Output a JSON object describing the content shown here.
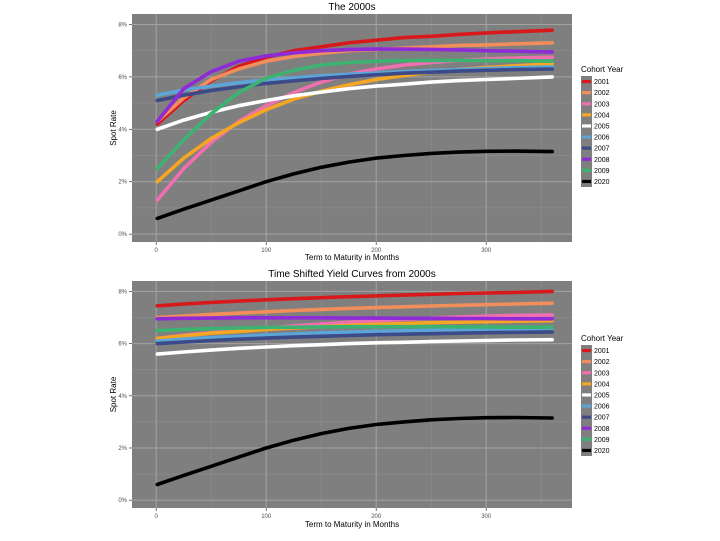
{
  "chart_data": [
    {
      "type": "line",
      "title": "The 2000s",
      "xlabel": "Term to Maturity in Months",
      "ylabel": "Spot Rate",
      "xlim": [
        -22,
        378
      ],
      "ylim": [
        -0.3,
        8.4
      ],
      "xticks": [
        0,
        100,
        200,
        300
      ],
      "xtick_labels": [
        "0",
        "100",
        "200",
        "300"
      ],
      "yticks": [
        0,
        2,
        4,
        6,
        8
      ],
      "ytick_labels": [
        "0%",
        "2%",
        "4%",
        "6%",
        "8%"
      ],
      "grid": true,
      "legend_title": "Cohort Year",
      "legend_position": "right",
      "x": [
        1,
        25,
        50,
        75,
        100,
        125,
        150,
        175,
        200,
        225,
        250,
        275,
        300,
        325,
        360
      ],
      "series": [
        {
          "name": "2001",
          "color": "#d7191c",
          "values": [
            4.2,
            5.1,
            5.85,
            6.4,
            6.75,
            7.0,
            7.15,
            7.3,
            7.4,
            7.5,
            7.55,
            7.62,
            7.68,
            7.72,
            7.78
          ]
        },
        {
          "name": "2002",
          "color": "#f28e5c",
          "values": [
            4.3,
            5.2,
            5.9,
            6.3,
            6.6,
            6.78,
            6.9,
            7.0,
            7.05,
            7.1,
            7.15,
            7.2,
            7.22,
            7.26,
            7.3
          ]
        },
        {
          "name": "2003",
          "color": "#f06fb0",
          "values": [
            1.3,
            2.5,
            3.5,
            4.3,
            4.9,
            5.4,
            5.8,
            6.1,
            6.3,
            6.45,
            6.55,
            6.62,
            6.68,
            6.72,
            6.75
          ]
        },
        {
          "name": "2004",
          "color": "#f5a623",
          "values": [
            2.0,
            2.9,
            3.65,
            4.25,
            4.75,
            5.15,
            5.45,
            5.7,
            5.9,
            6.05,
            6.18,
            6.28,
            6.36,
            6.42,
            6.5
          ]
        },
        {
          "name": "2005",
          "color": "#ffffff",
          "values": [
            4.0,
            4.35,
            4.65,
            4.9,
            5.1,
            5.28,
            5.42,
            5.55,
            5.65,
            5.72,
            5.8,
            5.86,
            5.9,
            5.94,
            6.0
          ]
        },
        {
          "name": "2006",
          "color": "#5da4d8",
          "values": [
            5.3,
            5.5,
            5.65,
            5.78,
            5.88,
            5.96,
            6.04,
            6.1,
            6.15,
            6.2,
            6.24,
            6.28,
            6.32,
            6.35,
            6.38
          ]
        },
        {
          "name": "2007",
          "color": "#3c4a87",
          "values": [
            5.1,
            5.3,
            5.48,
            5.62,
            5.75,
            5.85,
            5.94,
            6.02,
            6.08,
            6.14,
            6.18,
            6.22,
            6.25,
            6.28,
            6.3
          ]
        },
        {
          "name": "2008",
          "color": "#8e2bd6",
          "values": [
            4.3,
            5.55,
            6.2,
            6.6,
            6.8,
            6.92,
            7.0,
            7.04,
            7.06,
            7.06,
            7.05,
            7.03,
            7.0,
            6.98,
            6.95
          ]
        },
        {
          "name": "2009",
          "color": "#3cb371",
          "values": [
            2.5,
            3.6,
            4.6,
            5.4,
            5.95,
            6.25,
            6.45,
            6.55,
            6.6,
            6.62,
            6.63,
            6.63,
            6.62,
            6.62,
            6.6
          ]
        },
        {
          "name": "2020",
          "color": "#000000",
          "values": [
            0.6,
            0.95,
            1.3,
            1.65,
            2.0,
            2.3,
            2.55,
            2.75,
            2.9,
            3.0,
            3.08,
            3.13,
            3.16,
            3.17,
            3.15
          ]
        }
      ]
    },
    {
      "type": "line",
      "title": "Time Shifted Yield Curves from 2000s",
      "xlabel": "Term to Maturity in Months",
      "ylabel": "Spot Rate",
      "xlim": [
        -22,
        378
      ],
      "ylim": [
        -0.3,
        8.4
      ],
      "xticks": [
        0,
        100,
        200,
        300
      ],
      "xtick_labels": [
        "0",
        "100",
        "200",
        "300"
      ],
      "yticks": [
        0,
        2,
        4,
        6,
        8
      ],
      "ytick_labels": [
        "0%",
        "2%",
        "4%",
        "6%",
        "8%"
      ],
      "grid": true,
      "legend_title": "Cohort Year",
      "legend_position": "right",
      "x": [
        1,
        25,
        50,
        75,
        100,
        125,
        150,
        175,
        200,
        225,
        250,
        275,
        300,
        325,
        360
      ],
      "series": [
        {
          "name": "2001",
          "color": "#d7191c",
          "values": [
            7.45,
            7.52,
            7.58,
            7.63,
            7.68,
            7.72,
            7.76,
            7.8,
            7.83,
            7.86,
            7.89,
            7.92,
            7.94,
            7.96,
            8.0
          ]
        },
        {
          "name": "2002",
          "color": "#f28e5c",
          "values": [
            7.0,
            7.06,
            7.12,
            7.17,
            7.22,
            7.27,
            7.31,
            7.35,
            7.38,
            7.41,
            7.44,
            7.47,
            7.49,
            7.52,
            7.55
          ]
        },
        {
          "name": "2003",
          "color": "#f06fb0",
          "values": [
            6.2,
            6.32,
            6.42,
            6.52,
            6.6,
            6.68,
            6.75,
            6.82,
            6.88,
            6.93,
            6.98,
            7.02,
            7.05,
            7.08,
            7.1
          ]
        },
        {
          "name": "2004",
          "color": "#f5a623",
          "values": [
            6.2,
            6.3,
            6.4,
            6.47,
            6.54,
            6.6,
            6.65,
            6.7,
            6.74,
            6.77,
            6.8,
            6.82,
            6.84,
            6.86,
            6.88
          ]
        },
        {
          "name": "2005",
          "color": "#ffffff",
          "values": [
            5.6,
            5.68,
            5.75,
            5.82,
            5.87,
            5.92,
            5.96,
            6.0,
            6.03,
            6.05,
            6.08,
            6.1,
            6.12,
            6.14,
            6.15
          ]
        },
        {
          "name": "2006",
          "color": "#5da4d8",
          "values": [
            6.1,
            6.17,
            6.23,
            6.28,
            6.33,
            6.37,
            6.41,
            6.44,
            6.47,
            6.49,
            6.51,
            6.53,
            6.55,
            6.56,
            6.58
          ]
        },
        {
          "name": "2007",
          "color": "#3c4a87",
          "values": [
            6.0,
            6.06,
            6.12,
            6.17,
            6.21,
            6.25,
            6.28,
            6.31,
            6.34,
            6.36,
            6.38,
            6.4,
            6.42,
            6.43,
            6.45
          ]
        },
        {
          "name": "2008",
          "color": "#8e2bd6",
          "values": [
            6.95,
            6.97,
            6.98,
            6.99,
            6.99,
            6.99,
            6.99,
            6.98,
            6.98,
            6.97,
            6.97,
            6.96,
            6.96,
            6.95,
            6.95
          ]
        },
        {
          "name": "2009",
          "color": "#3cb371",
          "values": [
            6.5,
            6.54,
            6.57,
            6.6,
            6.62,
            6.63,
            6.64,
            6.65,
            6.65,
            6.65,
            6.65,
            6.64,
            6.64,
            6.63,
            6.63
          ]
        },
        {
          "name": "2020",
          "color": "#000000",
          "values": [
            0.6,
            0.95,
            1.3,
            1.65,
            2.0,
            2.3,
            2.55,
            2.75,
            2.9,
            3.0,
            3.08,
            3.13,
            3.16,
            3.17,
            3.15
          ]
        }
      ]
    }
  ]
}
